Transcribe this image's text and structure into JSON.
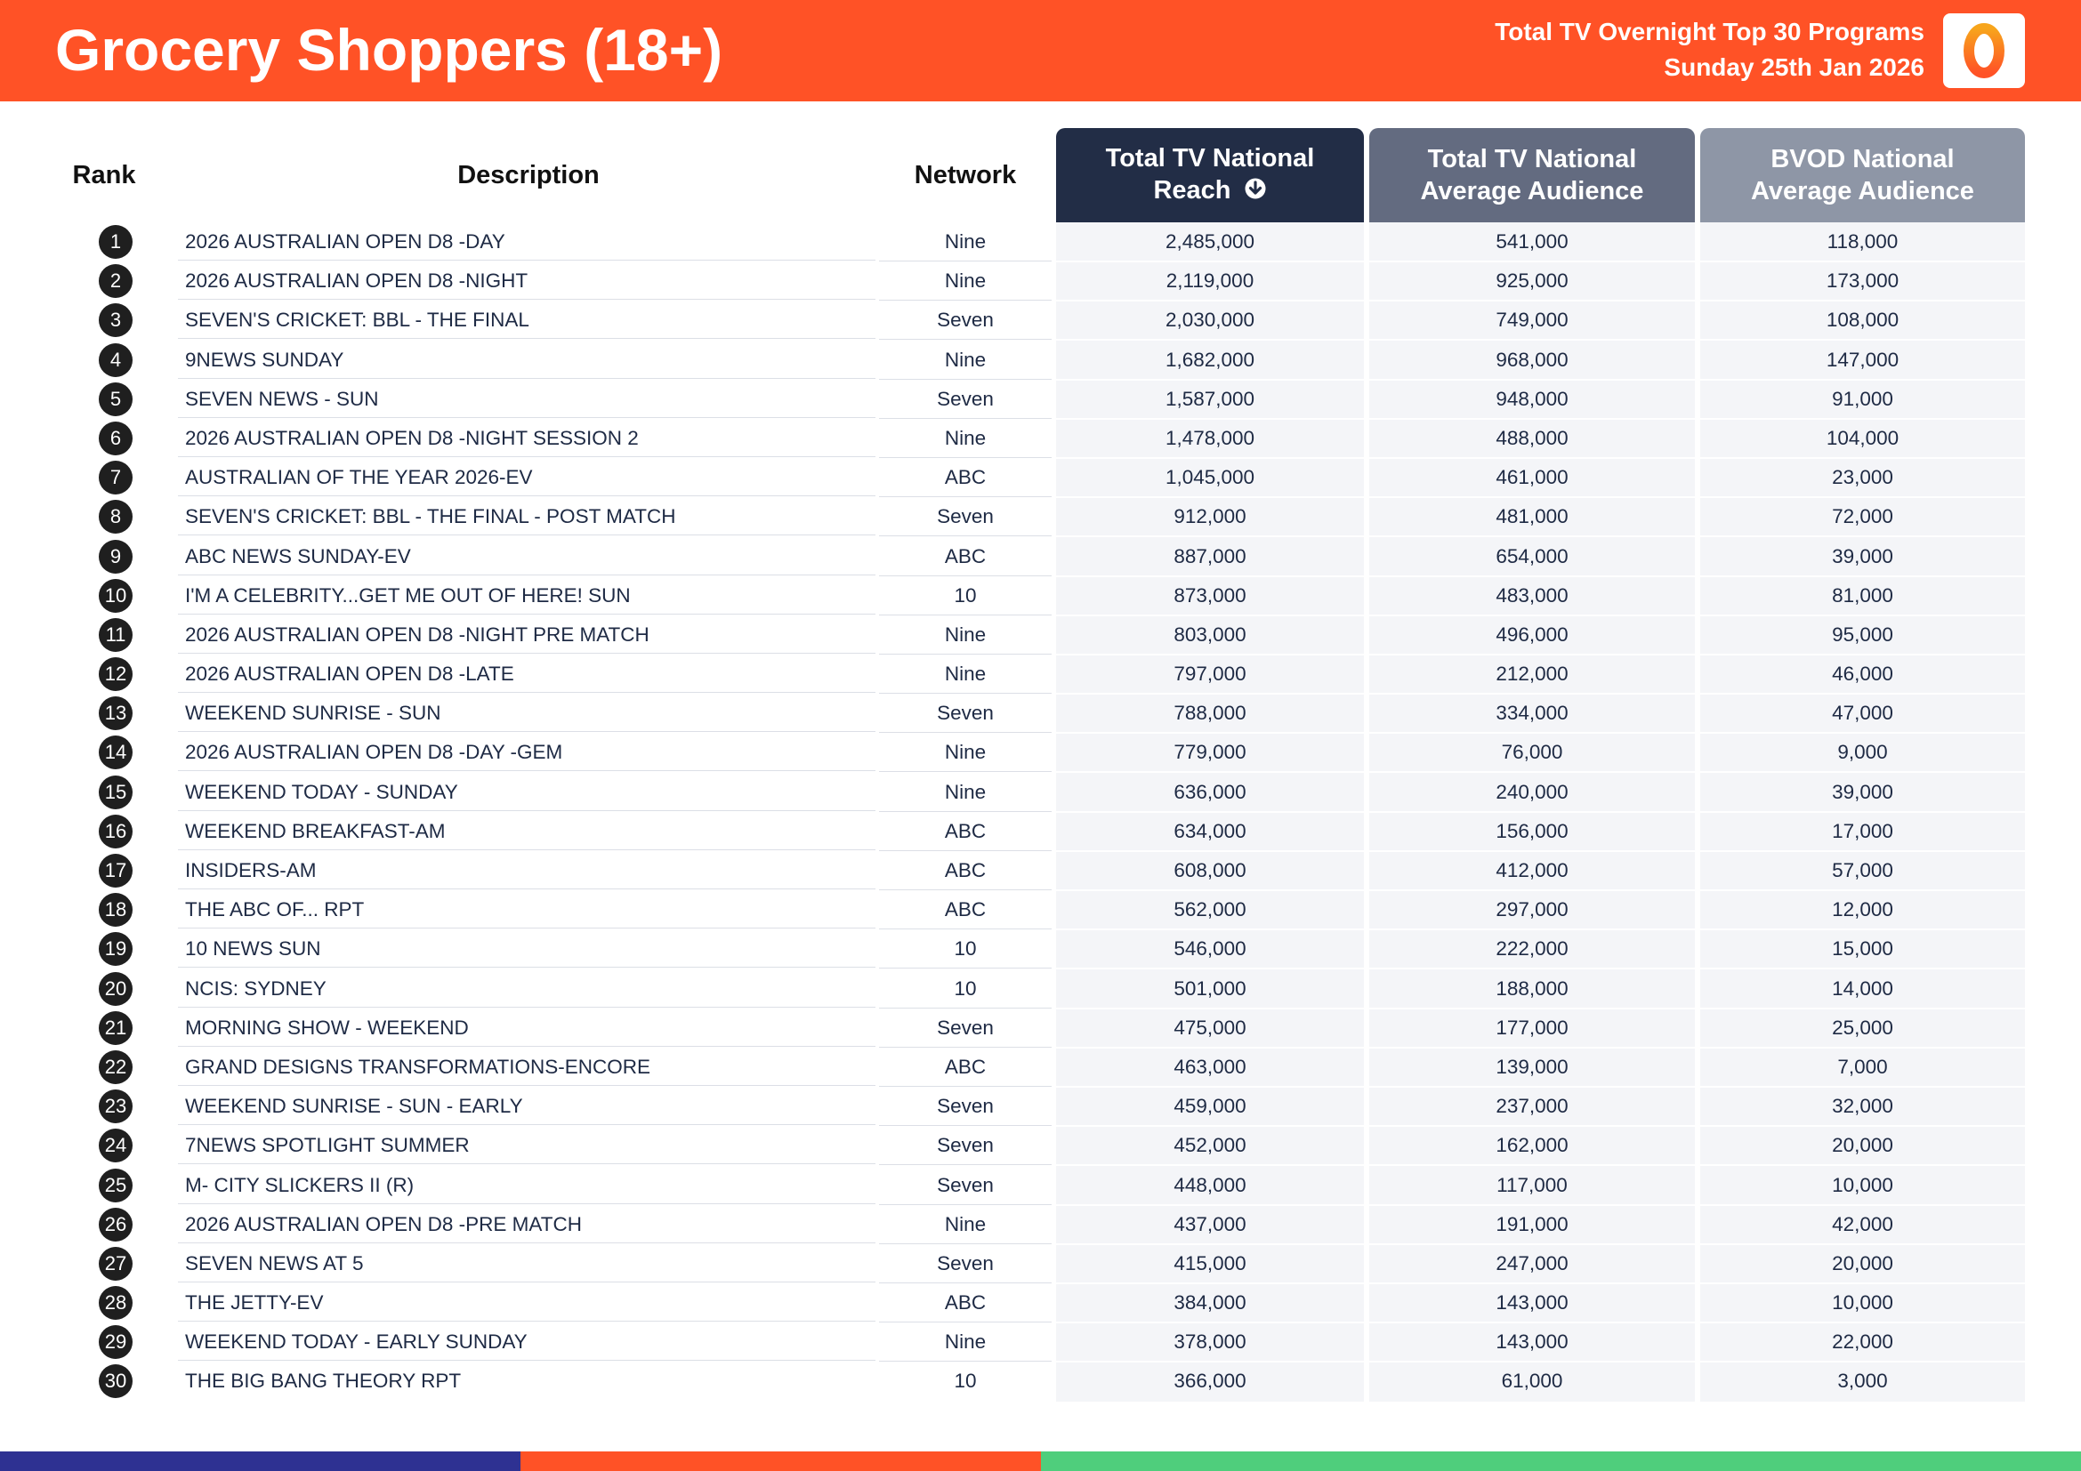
{
  "header": {
    "title": "Grocery Shoppers (18+)",
    "subtitle_line1": "Total TV Overnight Top 30 Programs",
    "subtitle_line2": "Sunday 25th Jan 2026",
    "logo_icon": "oztam-logo-icon",
    "accent_color": "#ff5226"
  },
  "columns": {
    "rank": "Rank",
    "description": "Description",
    "network": "Network",
    "reach_line1": "Total TV National",
    "reach_line2": "Reach",
    "reach_sort_icon": "arrow-down-circle-icon",
    "avg_line1": "Total TV National",
    "avg_line2": "Average Audience",
    "bvod_line1": "BVOD National",
    "bvod_line2": "Average Audience"
  },
  "rows": [
    {
      "rank": "1",
      "description": "2026 AUSTRALIAN OPEN D8 -DAY",
      "network": "Nine",
      "reach": "2,485,000",
      "avg": "541,000",
      "bvod": "118,000"
    },
    {
      "rank": "2",
      "description": "2026 AUSTRALIAN OPEN D8 -NIGHT",
      "network": "Nine",
      "reach": "2,119,000",
      "avg": "925,000",
      "bvod": "173,000"
    },
    {
      "rank": "3",
      "description": "SEVEN'S CRICKET: BBL - THE FINAL",
      "network": "Seven",
      "reach": "2,030,000",
      "avg": "749,000",
      "bvod": "108,000"
    },
    {
      "rank": "4",
      "description": "9NEWS SUNDAY",
      "network": "Nine",
      "reach": "1,682,000",
      "avg": "968,000",
      "bvod": "147,000"
    },
    {
      "rank": "5",
      "description": "SEVEN NEWS - SUN",
      "network": "Seven",
      "reach": "1,587,000",
      "avg": "948,000",
      "bvod": "91,000"
    },
    {
      "rank": "6",
      "description": "2026 AUSTRALIAN OPEN D8 -NIGHT SESSION 2",
      "network": "Nine",
      "reach": "1,478,000",
      "avg": "488,000",
      "bvod": "104,000"
    },
    {
      "rank": "7",
      "description": "AUSTRALIAN OF THE YEAR 2026-EV",
      "network": "ABC",
      "reach": "1,045,000",
      "avg": "461,000",
      "bvod": "23,000"
    },
    {
      "rank": "8",
      "description": "SEVEN'S CRICKET: BBL - THE FINAL - POST MATCH",
      "network": "Seven",
      "reach": "912,000",
      "avg": "481,000",
      "bvod": "72,000"
    },
    {
      "rank": "9",
      "description": "ABC NEWS SUNDAY-EV",
      "network": "ABC",
      "reach": "887,000",
      "avg": "654,000",
      "bvod": "39,000"
    },
    {
      "rank": "10",
      "description": "I'M A CELEBRITY...GET ME OUT OF HERE! SUN",
      "network": "10",
      "reach": "873,000",
      "avg": "483,000",
      "bvod": "81,000"
    },
    {
      "rank": "11",
      "description": "2026 AUSTRALIAN OPEN D8 -NIGHT PRE MATCH",
      "network": "Nine",
      "reach": "803,000",
      "avg": "496,000",
      "bvod": "95,000"
    },
    {
      "rank": "12",
      "description": "2026 AUSTRALIAN OPEN D8 -LATE",
      "network": "Nine",
      "reach": "797,000",
      "avg": "212,000",
      "bvod": "46,000"
    },
    {
      "rank": "13",
      "description": "WEEKEND SUNRISE - SUN",
      "network": "Seven",
      "reach": "788,000",
      "avg": "334,000",
      "bvod": "47,000"
    },
    {
      "rank": "14",
      "description": "2026 AUSTRALIAN OPEN D8 -DAY -GEM",
      "network": "Nine",
      "reach": "779,000",
      "avg": "76,000",
      "bvod": "9,000"
    },
    {
      "rank": "15",
      "description": "WEEKEND TODAY - SUNDAY",
      "network": "Nine",
      "reach": "636,000",
      "avg": "240,000",
      "bvod": "39,000"
    },
    {
      "rank": "16",
      "description": "WEEKEND BREAKFAST-AM",
      "network": "ABC",
      "reach": "634,000",
      "avg": "156,000",
      "bvod": "17,000"
    },
    {
      "rank": "17",
      "description": "INSIDERS-AM",
      "network": "ABC",
      "reach": "608,000",
      "avg": "412,000",
      "bvod": "57,000"
    },
    {
      "rank": "18",
      "description": "THE ABC OF... RPT",
      "network": "ABC",
      "reach": "562,000",
      "avg": "297,000",
      "bvod": "12,000"
    },
    {
      "rank": "19",
      "description": "10 NEWS SUN",
      "network": "10",
      "reach": "546,000",
      "avg": "222,000",
      "bvod": "15,000"
    },
    {
      "rank": "20",
      "description": "NCIS: SYDNEY",
      "network": "10",
      "reach": "501,000",
      "avg": "188,000",
      "bvod": "14,000"
    },
    {
      "rank": "21",
      "description": "MORNING SHOW - WEEKEND",
      "network": "Seven",
      "reach": "475,000",
      "avg": "177,000",
      "bvod": "25,000"
    },
    {
      "rank": "22",
      "description": "GRAND DESIGNS TRANSFORMATIONS-ENCORE",
      "network": "ABC",
      "reach": "463,000",
      "avg": "139,000",
      "bvod": "7,000"
    },
    {
      "rank": "23",
      "description": "WEEKEND SUNRISE - SUN - EARLY",
      "network": "Seven",
      "reach": "459,000",
      "avg": "237,000",
      "bvod": "32,000"
    },
    {
      "rank": "24",
      "description": "7NEWS SPOTLIGHT SUMMER",
      "network": "Seven",
      "reach": "452,000",
      "avg": "162,000",
      "bvod": "20,000"
    },
    {
      "rank": "25",
      "description": "M- CITY SLICKERS II (R)",
      "network": "Seven",
      "reach": "448,000",
      "avg": "117,000",
      "bvod": "10,000"
    },
    {
      "rank": "26",
      "description": "2026 AUSTRALIAN OPEN D8 -PRE MATCH",
      "network": "Nine",
      "reach": "437,000",
      "avg": "191,000",
      "bvod": "42,000"
    },
    {
      "rank": "27",
      "description": "SEVEN NEWS AT 5",
      "network": "Seven",
      "reach": "415,000",
      "avg": "247,000",
      "bvod": "20,000"
    },
    {
      "rank": "28",
      "description": "THE JETTY-EV",
      "network": "ABC",
      "reach": "384,000",
      "avg": "143,000",
      "bvod": "10,000"
    },
    {
      "rank": "29",
      "description": "WEEKEND TODAY - EARLY SUNDAY",
      "network": "Nine",
      "reach": "378,000",
      "avg": "143,000",
      "bvod": "22,000"
    },
    {
      "rank": "30",
      "description": "THE BIG BANG THEORY RPT",
      "network": "10",
      "reach": "366,000",
      "avg": "61,000",
      "bvod": "3,000"
    }
  ],
  "footer_colors": [
    "#2e3192",
    "#ff5226",
    "#4fce7c"
  ]
}
